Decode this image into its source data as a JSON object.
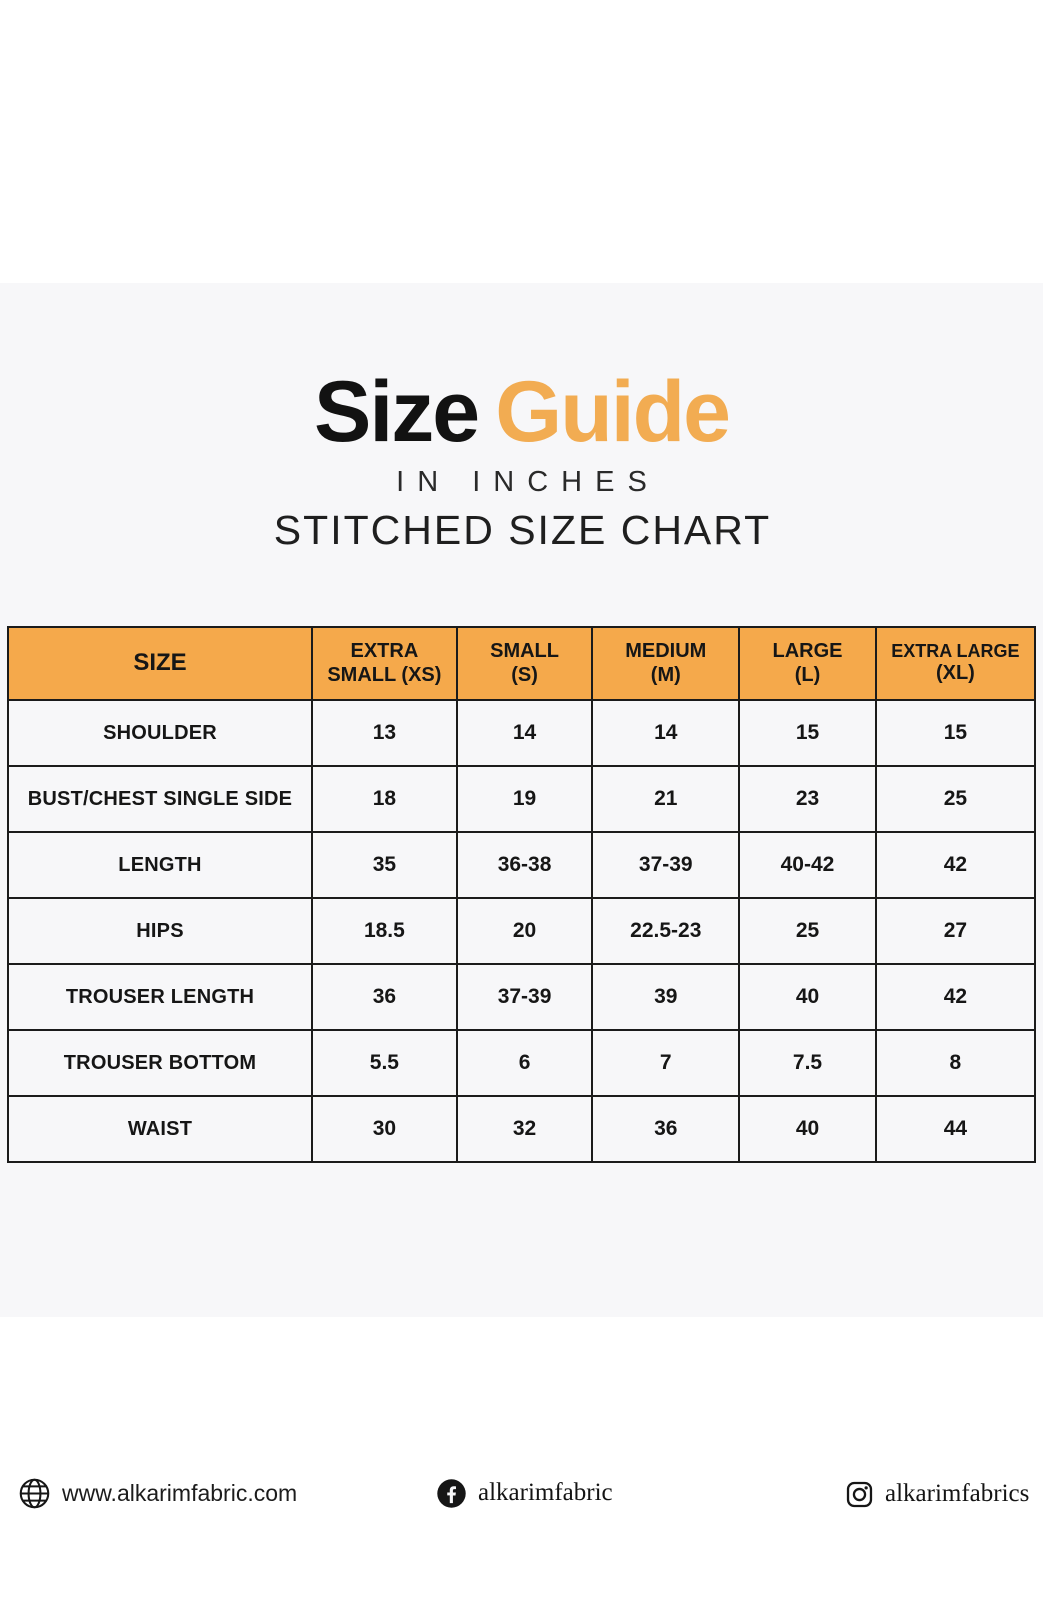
{
  "colors": {
    "accent_orange": "#F5A94B",
    "title_orange": "#F2AC52",
    "band_bg": "#F7F7F9",
    "border_color": "#1B1B1B"
  },
  "title": {
    "word_black": "Size",
    "word_orange": "Guide"
  },
  "subtitle_inches": "IN INCHES",
  "subtitle_stitched": "STITCHED SIZE CHART",
  "chart_data": {
    "type": "table",
    "title": "Size Guide",
    "units": "inches",
    "columns": [
      {
        "key": "size",
        "label": "SIZE",
        "line1": "SIZE",
        "line2": ""
      },
      {
        "key": "xs",
        "label": "EXTRA SMALL (XS)",
        "line1": "EXTRA",
        "line2": "SMALL (XS)"
      },
      {
        "key": "s",
        "label": "SMALL (S)",
        "line1": "SMALL",
        "line2": "(S)"
      },
      {
        "key": "m",
        "label": "MEDIUM (M)",
        "line1": "MEDIUM",
        "line2": "(M)"
      },
      {
        "key": "l",
        "label": "LARGE (L)",
        "line1": "LARGE",
        "line2": "(L)"
      },
      {
        "key": "xl",
        "label": "EXTRA LARGE (XL)",
        "line1": "EXTRA LARGE",
        "line2": "(XL)"
      }
    ],
    "rows": [
      {
        "label": "SHOULDER",
        "values": [
          "13",
          "14",
          "14",
          "15",
          "15"
        ]
      },
      {
        "label": "BUST/CHEST SINGLE SIDE",
        "values": [
          "18",
          "19",
          "21",
          "23",
          "25"
        ]
      },
      {
        "label": "LENGTH",
        "values": [
          "35",
          "36-38",
          "37-39",
          "40-42",
          "42"
        ]
      },
      {
        "label": "HIPS",
        "values": [
          "18.5",
          "20",
          "22.5-23",
          "25",
          "27"
        ]
      },
      {
        "label": "TROUSER LENGTH",
        "values": [
          "36",
          "37-39",
          "39",
          "40",
          "42"
        ]
      },
      {
        "label": "TROUSER BOTTOM",
        "values": [
          "5.5",
          "6",
          "7",
          "7.5",
          "8"
        ]
      },
      {
        "label": "WAIST",
        "values": [
          "30",
          "32",
          "36",
          "40",
          "44"
        ]
      }
    ]
  },
  "footer": {
    "website": "www.alkarimfabric.com",
    "facebook_handle": "alkarimfabric",
    "instagram_handle": "alkarimfabrics",
    "icons": [
      "globe-icon",
      "facebook-icon",
      "instagram-icon"
    ]
  }
}
